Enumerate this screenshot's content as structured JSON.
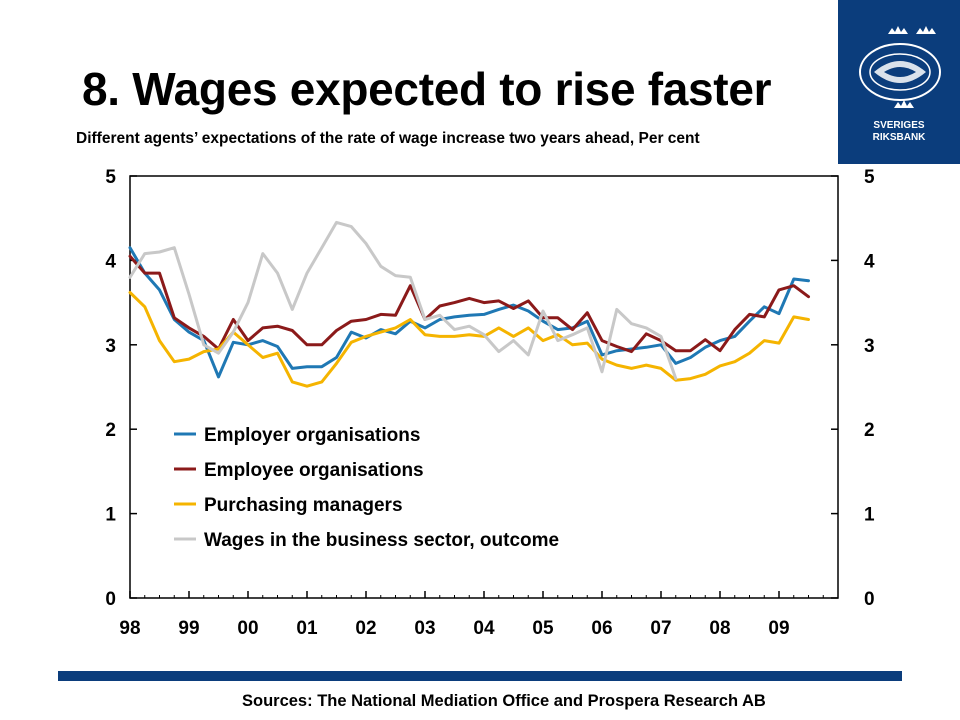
{
  "slide": {
    "title": "8. Wages expected to rise faster",
    "subtitle": "Different agents’ expectations of the rate of wage increase two years ahead, Per cent",
    "sources": "Sources: The National Mediation Office and Prospera Research AB",
    "logo_text_1": "SVERIGES",
    "logo_text_2": "RIKSBANK"
  },
  "colors": {
    "brand_blue": "#0b3d7c",
    "employer": "#1f78b4",
    "employee": "#8b1a1a",
    "purchasing": "#f5b400",
    "wages": "#c8c8c8"
  },
  "chart_data": {
    "type": "line",
    "title": "",
    "xlabel": "",
    "ylabel": "",
    "ylim": [
      0,
      5
    ],
    "xlim": [
      1998,
      2010
    ],
    "y_ticks_left": [
      "0",
      "1",
      "2",
      "3",
      "4",
      "5"
    ],
    "y_ticks_right": [
      "0",
      "1",
      "2",
      "3",
      "4",
      "5"
    ],
    "x_tick_labels": [
      "98",
      "99",
      "00",
      "01",
      "02",
      "03",
      "04",
      "05",
      "06",
      "07",
      "08",
      "09"
    ],
    "grid": false,
    "legend_position": "lower-left",
    "series": [
      {
        "name": "Employer organisations",
        "color": "#1f78b4",
        "points": [
          [
            1998.0,
            4.15
          ],
          [
            1998.25,
            3.85
          ],
          [
            1998.5,
            3.65
          ],
          [
            1998.75,
            3.3
          ],
          [
            1999.0,
            3.15
          ],
          [
            1999.25,
            3.05
          ],
          [
            1999.5,
            2.62
          ],
          [
            1999.75,
            3.03
          ],
          [
            2000.0,
            3.0
          ],
          [
            2000.25,
            3.05
          ],
          [
            2000.5,
            2.98
          ],
          [
            2000.75,
            2.72
          ],
          [
            2001.0,
            2.74
          ],
          [
            2001.25,
            2.74
          ],
          [
            2001.5,
            2.85
          ],
          [
            2001.75,
            3.15
          ],
          [
            2002.0,
            3.08
          ],
          [
            2002.25,
            3.18
          ],
          [
            2002.5,
            3.13
          ],
          [
            2002.75,
            3.28
          ],
          [
            2003.0,
            3.2
          ],
          [
            2003.25,
            3.3
          ],
          [
            2003.5,
            3.33
          ],
          [
            2003.75,
            3.35
          ],
          [
            2004.0,
            3.36
          ],
          [
            2004.25,
            3.42
          ],
          [
            2004.5,
            3.47
          ],
          [
            2004.75,
            3.4
          ],
          [
            2005.0,
            3.28
          ],
          [
            2005.25,
            3.18
          ],
          [
            2005.5,
            3.2
          ],
          [
            2005.75,
            3.28
          ],
          [
            2006.0,
            2.88
          ],
          [
            2006.25,
            2.93
          ],
          [
            2006.5,
            2.95
          ],
          [
            2006.75,
            2.97
          ],
          [
            2007.0,
            3.0
          ],
          [
            2007.25,
            2.78
          ],
          [
            2007.5,
            2.85
          ],
          [
            2007.75,
            2.97
          ],
          [
            2008.0,
            3.05
          ],
          [
            2008.25,
            3.1
          ],
          [
            2008.5,
            3.28
          ],
          [
            2008.75,
            3.45
          ],
          [
            2009.0,
            3.37
          ],
          [
            2009.25,
            3.78
          ],
          [
            2009.5,
            3.76
          ]
        ]
      },
      {
        "name": "Employee organisations",
        "color": "#8b1a1a",
        "points": [
          [
            1998.0,
            4.05
          ],
          [
            1998.25,
            3.85
          ],
          [
            1998.5,
            3.85
          ],
          [
            1998.75,
            3.32
          ],
          [
            1999.0,
            3.2
          ],
          [
            1999.25,
            3.1
          ],
          [
            1999.5,
            2.95
          ],
          [
            1999.75,
            3.3
          ],
          [
            2000.0,
            3.05
          ],
          [
            2000.25,
            3.2
          ],
          [
            2000.5,
            3.22
          ],
          [
            2000.75,
            3.17
          ],
          [
            2001.0,
            3.0
          ],
          [
            2001.25,
            3.0
          ],
          [
            2001.5,
            3.17
          ],
          [
            2001.75,
            3.28
          ],
          [
            2002.0,
            3.3
          ],
          [
            2002.25,
            3.36
          ],
          [
            2002.5,
            3.35
          ],
          [
            2002.75,
            3.7
          ],
          [
            2003.0,
            3.3
          ],
          [
            2003.25,
            3.46
          ],
          [
            2003.5,
            3.5
          ],
          [
            2003.75,
            3.55
          ],
          [
            2004.0,
            3.5
          ],
          [
            2004.25,
            3.52
          ],
          [
            2004.5,
            3.43
          ],
          [
            2004.75,
            3.52
          ],
          [
            2005.0,
            3.32
          ],
          [
            2005.25,
            3.32
          ],
          [
            2005.5,
            3.18
          ],
          [
            2005.75,
            3.38
          ],
          [
            2006.0,
            3.05
          ],
          [
            2006.25,
            2.98
          ],
          [
            2006.5,
            2.92
          ],
          [
            2006.75,
            3.13
          ],
          [
            2007.0,
            3.05
          ],
          [
            2007.25,
            2.93
          ],
          [
            2007.5,
            2.93
          ],
          [
            2007.75,
            3.06
          ],
          [
            2008.0,
            2.93
          ],
          [
            2008.25,
            3.18
          ],
          [
            2008.5,
            3.36
          ],
          [
            2008.75,
            3.33
          ],
          [
            2009.0,
            3.65
          ],
          [
            2009.25,
            3.7
          ],
          [
            2009.5,
            3.57
          ]
        ]
      },
      {
        "name": "Purchasing managers",
        "color": "#f5b400",
        "points": [
          [
            1998.0,
            3.62
          ],
          [
            1998.25,
            3.45
          ],
          [
            1998.5,
            3.05
          ],
          [
            1998.75,
            2.8
          ],
          [
            1999.0,
            2.83
          ],
          [
            1999.25,
            2.92
          ],
          [
            1999.5,
            2.95
          ],
          [
            1999.75,
            3.15
          ],
          [
            2000.0,
            3.0
          ],
          [
            2000.25,
            2.85
          ],
          [
            2000.5,
            2.9
          ],
          [
            2000.75,
            2.56
          ],
          [
            2001.0,
            2.51
          ],
          [
            2001.25,
            2.56
          ],
          [
            2001.5,
            2.78
          ],
          [
            2001.75,
            3.03
          ],
          [
            2002.0,
            3.1
          ],
          [
            2002.25,
            3.15
          ],
          [
            2002.5,
            3.2
          ],
          [
            2002.75,
            3.3
          ],
          [
            2003.0,
            3.12
          ],
          [
            2003.25,
            3.1
          ],
          [
            2003.5,
            3.1
          ],
          [
            2003.75,
            3.12
          ],
          [
            2004.0,
            3.1
          ],
          [
            2004.25,
            3.2
          ],
          [
            2004.5,
            3.1
          ],
          [
            2004.75,
            3.2
          ],
          [
            2005.0,
            3.05
          ],
          [
            2005.25,
            3.12
          ],
          [
            2005.5,
            3.0
          ],
          [
            2005.75,
            3.02
          ],
          [
            2006.0,
            2.83
          ],
          [
            2006.25,
            2.76
          ],
          [
            2006.5,
            2.72
          ],
          [
            2006.75,
            2.76
          ],
          [
            2007.0,
            2.72
          ],
          [
            2007.25,
            2.58
          ],
          [
            2007.5,
            2.6
          ],
          [
            2007.75,
            2.65
          ],
          [
            2008.0,
            2.75
          ],
          [
            2008.25,
            2.8
          ],
          [
            2008.5,
            2.9
          ],
          [
            2008.75,
            3.05
          ],
          [
            2009.0,
            3.02
          ],
          [
            2009.25,
            3.33
          ],
          [
            2009.5,
            3.3
          ]
        ]
      },
      {
        "name": "Wages in the business sector, outcome",
        "color": "#c8c8c8",
        "points": [
          [
            1998.0,
            3.8
          ],
          [
            1998.25,
            4.08
          ],
          [
            1998.5,
            4.1
          ],
          [
            1998.75,
            4.15
          ],
          [
            1999.0,
            3.6
          ],
          [
            1999.25,
            3.0
          ],
          [
            1999.5,
            2.9
          ],
          [
            1999.75,
            3.15
          ],
          [
            2000.0,
            3.5
          ],
          [
            2000.25,
            4.08
          ],
          [
            2000.5,
            3.85
          ],
          [
            2000.75,
            3.42
          ],
          [
            2001.0,
            3.85
          ],
          [
            2001.25,
            4.15
          ],
          [
            2001.5,
            4.45
          ],
          [
            2001.75,
            4.4
          ],
          [
            2002.0,
            4.2
          ],
          [
            2002.25,
            3.93
          ],
          [
            2002.5,
            3.82
          ],
          [
            2002.75,
            3.8
          ],
          [
            2003.0,
            3.3
          ],
          [
            2003.25,
            3.35
          ],
          [
            2003.5,
            3.18
          ],
          [
            2003.75,
            3.22
          ],
          [
            2004.0,
            3.12
          ],
          [
            2004.25,
            2.92
          ],
          [
            2004.5,
            3.05
          ],
          [
            2004.75,
            2.88
          ],
          [
            2005.0,
            3.4
          ],
          [
            2005.25,
            3.05
          ],
          [
            2005.5,
            3.12
          ],
          [
            2005.75,
            3.2
          ],
          [
            2006.0,
            2.68
          ],
          [
            2006.25,
            3.42
          ],
          [
            2006.5,
            3.25
          ],
          [
            2006.75,
            3.2
          ],
          [
            2007.0,
            3.1
          ],
          [
            2007.25,
            2.6
          ]
        ]
      }
    ]
  }
}
